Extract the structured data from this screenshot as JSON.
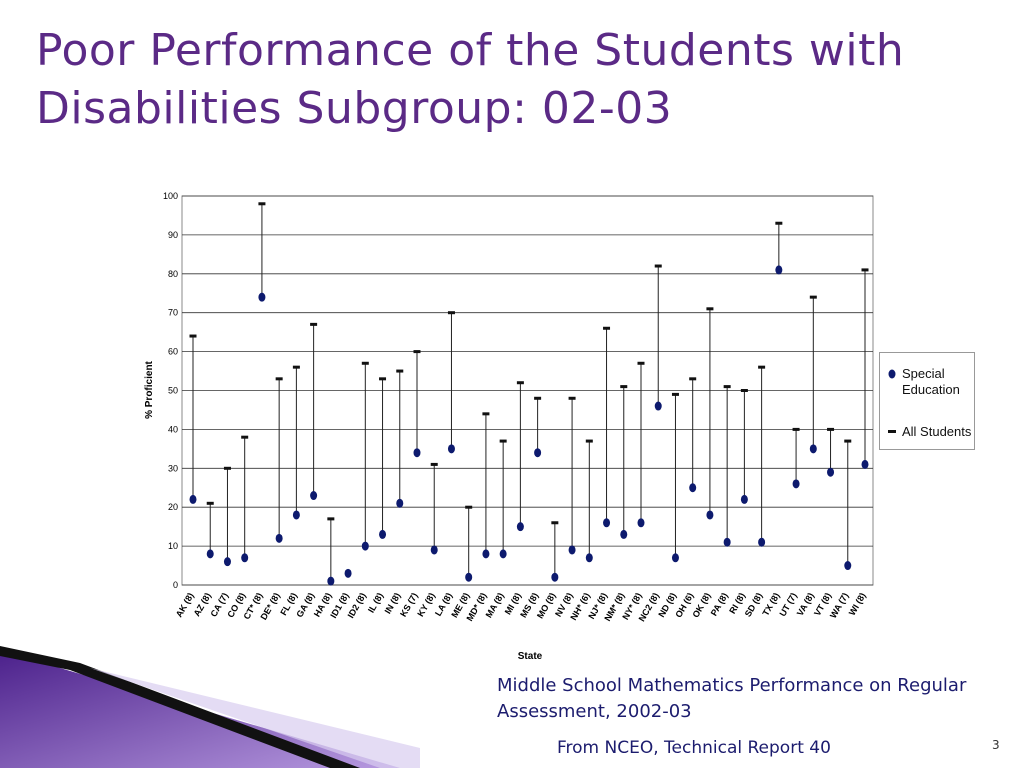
{
  "title": "Poor Performance of the Students with Disabilities Subgroup: 02-03",
  "caption": "Middle School Mathematics Performance on Regular Assessment, 2002-03",
  "source": "From NCEO, Technical Report 40",
  "page_number": "3",
  "chart_data": {
    "type": "dotrange",
    "x_label": "State",
    "y_label": "% Proficient",
    "categories": [
      "AK (8)",
      "AZ (8)",
      "CA (7)",
      "CO (8)",
      "CT* (8)",
      "DE* (8)",
      "FL (8)",
      "GA (8)",
      "HA (8)",
      "ID1 (8)",
      "ID2 (8)",
      "IL (8)",
      "IN (8)",
      "KS (7)",
      "KY (8)",
      "LA (8)",
      "ME (8)",
      "MD* (8)",
      "MA (8)",
      "MI (8)",
      "MS (8)",
      "MO (8)",
      "NV (8)",
      "NH* (6)",
      "NJ* (8)",
      "NM* (8)",
      "NY* (8)",
      "NC2 (8)",
      "ND (8)",
      "OH (6)",
      "OK (8)",
      "PA (8)",
      "RI (8)",
      "SD (8)",
      "TX (8)",
      "UT (7)",
      "VA (8)",
      "VT (8)",
      "WA (7)",
      "WI (8)"
    ],
    "series": [
      {
        "name": "Special Education",
        "color": "#0d1a6e",
        "values": [
          22,
          8,
          6,
          7,
          74,
          12,
          18,
          23,
          1,
          3,
          10,
          13,
          21,
          34,
          9,
          35,
          2,
          8,
          8,
          15,
          34,
          2,
          9,
          7,
          16,
          13,
          16,
          46,
          7,
          25,
          18,
          11,
          22,
          11,
          81,
          26,
          35,
          29,
          5,
          31
        ]
      },
      {
        "name": "All Students",
        "color": "#111111",
        "values": [
          64,
          21,
          30,
          38,
          98,
          53,
          56,
          67,
          17,
          null,
          57,
          53,
          55,
          60,
          31,
          70,
          20,
          44,
          37,
          52,
          48,
          16,
          48,
          37,
          66,
          51,
          57,
          82,
          49,
          53,
          71,
          51,
          50,
          56,
          93,
          40,
          74,
          40,
          37,
          81
        ]
      }
    ],
    "ylim": [
      0,
      100
    ],
    "yticks": [
      0,
      10,
      20,
      30,
      40,
      50,
      60,
      70,
      80,
      90,
      100
    ],
    "grid": true,
    "legend": "right"
  }
}
